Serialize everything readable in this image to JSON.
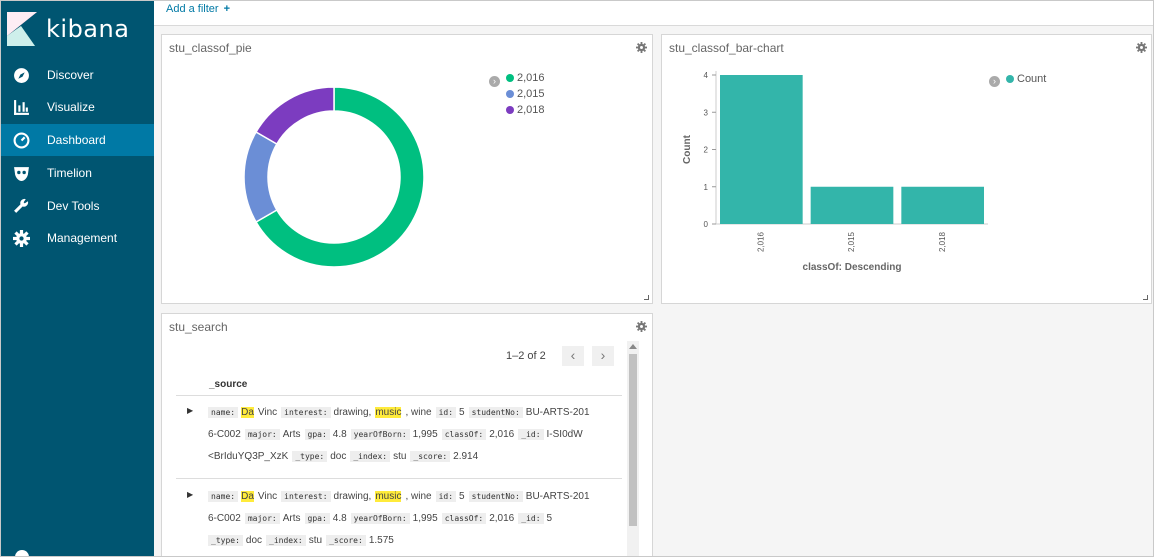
{
  "sidebar": {
    "brand": "kibana",
    "items": [
      {
        "label": "Discover",
        "icon": "compass-icon"
      },
      {
        "label": "Visualize",
        "icon": "bar-chart-icon"
      },
      {
        "label": "Dashboard",
        "icon": "dashboard-gauge-icon",
        "active": true
      },
      {
        "label": "Timelion",
        "icon": "timelion-mask-icon"
      },
      {
        "label": "Dev Tools",
        "icon": "wrench-icon"
      },
      {
        "label": "Management",
        "icon": "gear-icon"
      }
    ]
  },
  "filter_bar": {
    "add_filter": "Add a filter",
    "plus": "+"
  },
  "pie_panel": {
    "title": "stu_classof_pie",
    "legend": [
      {
        "label": "2,016",
        "color": "#00bf80"
      },
      {
        "label": "2,015",
        "color": "#6b8ed6"
      },
      {
        "label": "2,018",
        "color": "#7c3cc0"
      }
    ]
  },
  "bar_panel": {
    "title": "stu_classof_bar-chart",
    "legend_label": "Count",
    "legend_color": "#33b5aa"
  },
  "chart_data": [
    {
      "type": "pie",
      "donut": true,
      "categories": [
        "2,016",
        "2,015",
        "2,018"
      ],
      "values": [
        4,
        1,
        1
      ],
      "colors": [
        "#00bf80",
        "#6b8ed6",
        "#7c3cc0"
      ],
      "legend": "top-right"
    },
    {
      "type": "bar",
      "categories": [
        "2,016",
        "2,015",
        "2,018"
      ],
      "values": [
        4,
        1,
        1
      ],
      "xlabel": "classOf: Descending",
      "ylabel": "Count",
      "yticks": [
        "0",
        "1",
        "2",
        "3",
        "4"
      ],
      "ylim": [
        0,
        4
      ],
      "color": "#33b5aa",
      "legend": "top-right",
      "series": [
        {
          "name": "Count",
          "values": [
            4,
            1,
            1
          ]
        }
      ]
    }
  ],
  "search_panel": {
    "title": "stu_search",
    "pager": "1–2 of 2",
    "prev": "‹",
    "next": "›",
    "column": "_source",
    "rows": [
      {
        "lines": [
          [
            {
              "k": "name:"
            },
            {
              "v": "Da",
              "hl": true
            },
            {
              "v": "Vinc"
            },
            {
              "k": "interest:"
            },
            {
              "v": "drawing,"
            },
            {
              "v": "music",
              "hl": true
            },
            {
              "v": ", wine"
            },
            {
              "k": "id:"
            },
            {
              "v": "5"
            },
            {
              "k": "studentNo:"
            },
            {
              "v": "BU-ARTS-201"
            }
          ],
          [
            {
              "v": "6-C002"
            },
            {
              "k": "major:"
            },
            {
              "v": "Arts"
            },
            {
              "k": "gpa:"
            },
            {
              "v": "4.8"
            },
            {
              "k": "yearOfBorn:"
            },
            {
              "v": "1,995"
            },
            {
              "k": "classOf:"
            },
            {
              "v": "2,016"
            },
            {
              "k": "_id:"
            },
            {
              "v": "I-SI0dW"
            }
          ],
          [
            {
              "v": "<BrIduYQ3P_XzK"
            },
            {
              "k": "_type:"
            },
            {
              "v": "doc"
            },
            {
              "k": "_index:"
            },
            {
              "v": "stu"
            },
            {
              "k": "_score:"
            },
            {
              "v": "2.914"
            }
          ]
        ]
      },
      {
        "lines": [
          [
            {
              "k": "name:"
            },
            {
              "v": "Da",
              "hl": true
            },
            {
              "v": "Vinc"
            },
            {
              "k": "interest:"
            },
            {
              "v": "drawing,"
            },
            {
              "v": "music",
              "hl": true
            },
            {
              "v": ", wine"
            },
            {
              "k": "id:"
            },
            {
              "v": "5"
            },
            {
              "k": "studentNo:"
            },
            {
              "v": "BU-ARTS-201"
            }
          ],
          [
            {
              "v": "6-C002"
            },
            {
              "k": "major:"
            },
            {
              "v": "Arts"
            },
            {
              "k": "gpa:"
            },
            {
              "v": "4.8"
            },
            {
              "k": "yearOfBorn:"
            },
            {
              "v": "1,995"
            },
            {
              "k": "classOf:"
            },
            {
              "v": "2,016"
            },
            {
              "k": "_id:"
            },
            {
              "v": "5"
            }
          ],
          [
            {
              "k": "_type:"
            },
            {
              "v": "doc"
            },
            {
              "k": "_index:"
            },
            {
              "v": "stu"
            },
            {
              "k": "_score:"
            },
            {
              "v": "1.575"
            }
          ]
        ]
      }
    ]
  }
}
